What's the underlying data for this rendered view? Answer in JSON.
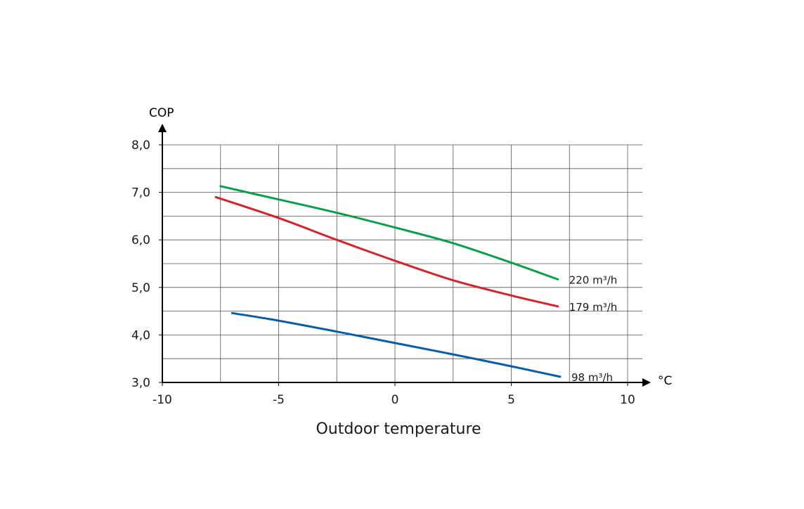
{
  "chart_data": {
    "type": "line",
    "title": "",
    "xlabel": "Outdoor temperature",
    "ylabel": "COP",
    "x_unit": "°C",
    "xlim": [
      -10,
      10.7
    ],
    "ylim": [
      3,
      8
    ],
    "x_ticks": [
      -10,
      -5,
      0,
      5,
      10
    ],
    "x_tick_labels": [
      "-10",
      "-5",
      "0",
      "5",
      "10"
    ],
    "y_ticks": [
      3,
      4,
      5,
      6,
      7,
      8
    ],
    "y_tick_labels": [
      "3,0",
      "4,0",
      "5,0",
      "6,0",
      "7,0",
      "8,0"
    ],
    "grid": true,
    "legend": "inline-right",
    "series": [
      {
        "name": "220 m³/h",
        "color": "#0aa04b",
        "x": [
          -7.5,
          -5,
          -2.5,
          0,
          2.5,
          5,
          7
        ],
        "y": [
          7.13,
          6.85,
          6.57,
          6.26,
          5.93,
          5.52,
          5.17
        ]
      },
      {
        "name": "179 m³/h",
        "color": "#d5232a",
        "x": [
          -7.7,
          -5,
          -2.5,
          0,
          2.5,
          5,
          7
        ],
        "y": [
          6.9,
          6.46,
          6.0,
          5.56,
          5.15,
          4.83,
          4.6
        ]
      },
      {
        "name": "98 m³/h",
        "color": "#0a5ea5",
        "x": [
          -7,
          -5,
          -2.5,
          0,
          2.5,
          5,
          7.1
        ],
        "y": [
          4.46,
          4.3,
          4.07,
          3.83,
          3.59,
          3.34,
          3.12
        ]
      }
    ]
  }
}
